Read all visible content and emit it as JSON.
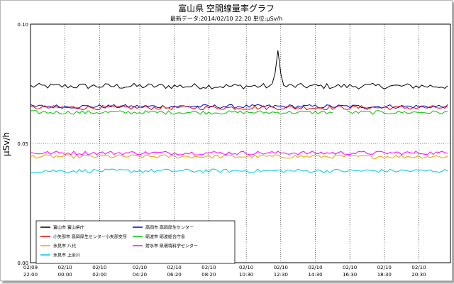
{
  "chart_data": {
    "type": "line",
    "title": "富山県 空間線量率グラフ",
    "subtitle": "最新データ:2014/02/10 22:20 単位:μSv/h",
    "ylabel": "μSv/h",
    "xlabel": "",
    "ylim": [
      0.0,
      0.1
    ],
    "y_ticks": [
      "0.00",
      "0.05",
      "0.10"
    ],
    "x_range_hours": [
      0,
      24.33
    ],
    "x_ticks": [
      {
        "t": 0.0,
        "date": "02/09",
        "time": "22:00"
      },
      {
        "t": 2.0,
        "date": "02/10",
        "time": "00:00"
      },
      {
        "t": 4.0,
        "date": "02/10",
        "time": "02:00"
      },
      {
        "t": 6.33,
        "date": "02/10",
        "time": "04:20"
      },
      {
        "t": 8.33,
        "date": "02/10",
        "time": "06:20"
      },
      {
        "t": 10.33,
        "date": "02/10",
        "time": "08:20"
      },
      {
        "t": 12.5,
        "date": "02/10",
        "time": "10:30"
      },
      {
        "t": 14.5,
        "date": "02/10",
        "time": "12:30"
      },
      {
        "t": 16.5,
        "date": "02/10",
        "time": "14:30"
      },
      {
        "t": 18.5,
        "date": "02/10",
        "time": "16:30"
      },
      {
        "t": 20.5,
        "date": "02/10",
        "time": "18:30"
      },
      {
        "t": 22.5,
        "date": "02/10",
        "time": "20:30"
      }
    ],
    "grid": "vertical-and-horizontal",
    "legend_position": "bottom-left",
    "series": [
      {
        "name": "富山市 富山県庁",
        "color": "#000000",
        "base": 0.074,
        "noise": 0.0012,
        "spike": {
          "t": 14.3,
          "value": 0.089
        }
      },
      {
        "name": "高岡市 高岡厚生センター",
        "color": "#0000cc",
        "base": 0.0655,
        "noise": 0.0008
      },
      {
        "name": "小矢部市 高岡厚生センター小矢部支所",
        "color": "#dd0000",
        "base": 0.065,
        "noise": 0.0009
      },
      {
        "name": "砺波市 砺波総合庁舎",
        "color": "#00c000",
        "base": 0.063,
        "noise": 0.0008,
        "gap": [
          17.6,
          18.3
        ]
      },
      {
        "name": "氷見市 八代",
        "color": "#f0a000",
        "base": 0.0445,
        "noise": 0.0008
      },
      {
        "name": "射水市 県環境科学センター",
        "color": "#ff00ff",
        "base": 0.046,
        "noise": 0.0008
      },
      {
        "name": "氷見市 上余川",
        "color": "#00c8d8",
        "base": 0.0385,
        "noise": 0.0008
      }
    ],
    "legend_order": [
      "富山市 富山県庁",
      "高岡市 高岡厚生センター",
      "小矢部市 高岡厚生センター小矢部支所",
      "砺波市 砺波総合庁舎",
      "氷見市 八代",
      "射水市 県環境科学センター",
      "氷見市 上余川"
    ]
  }
}
